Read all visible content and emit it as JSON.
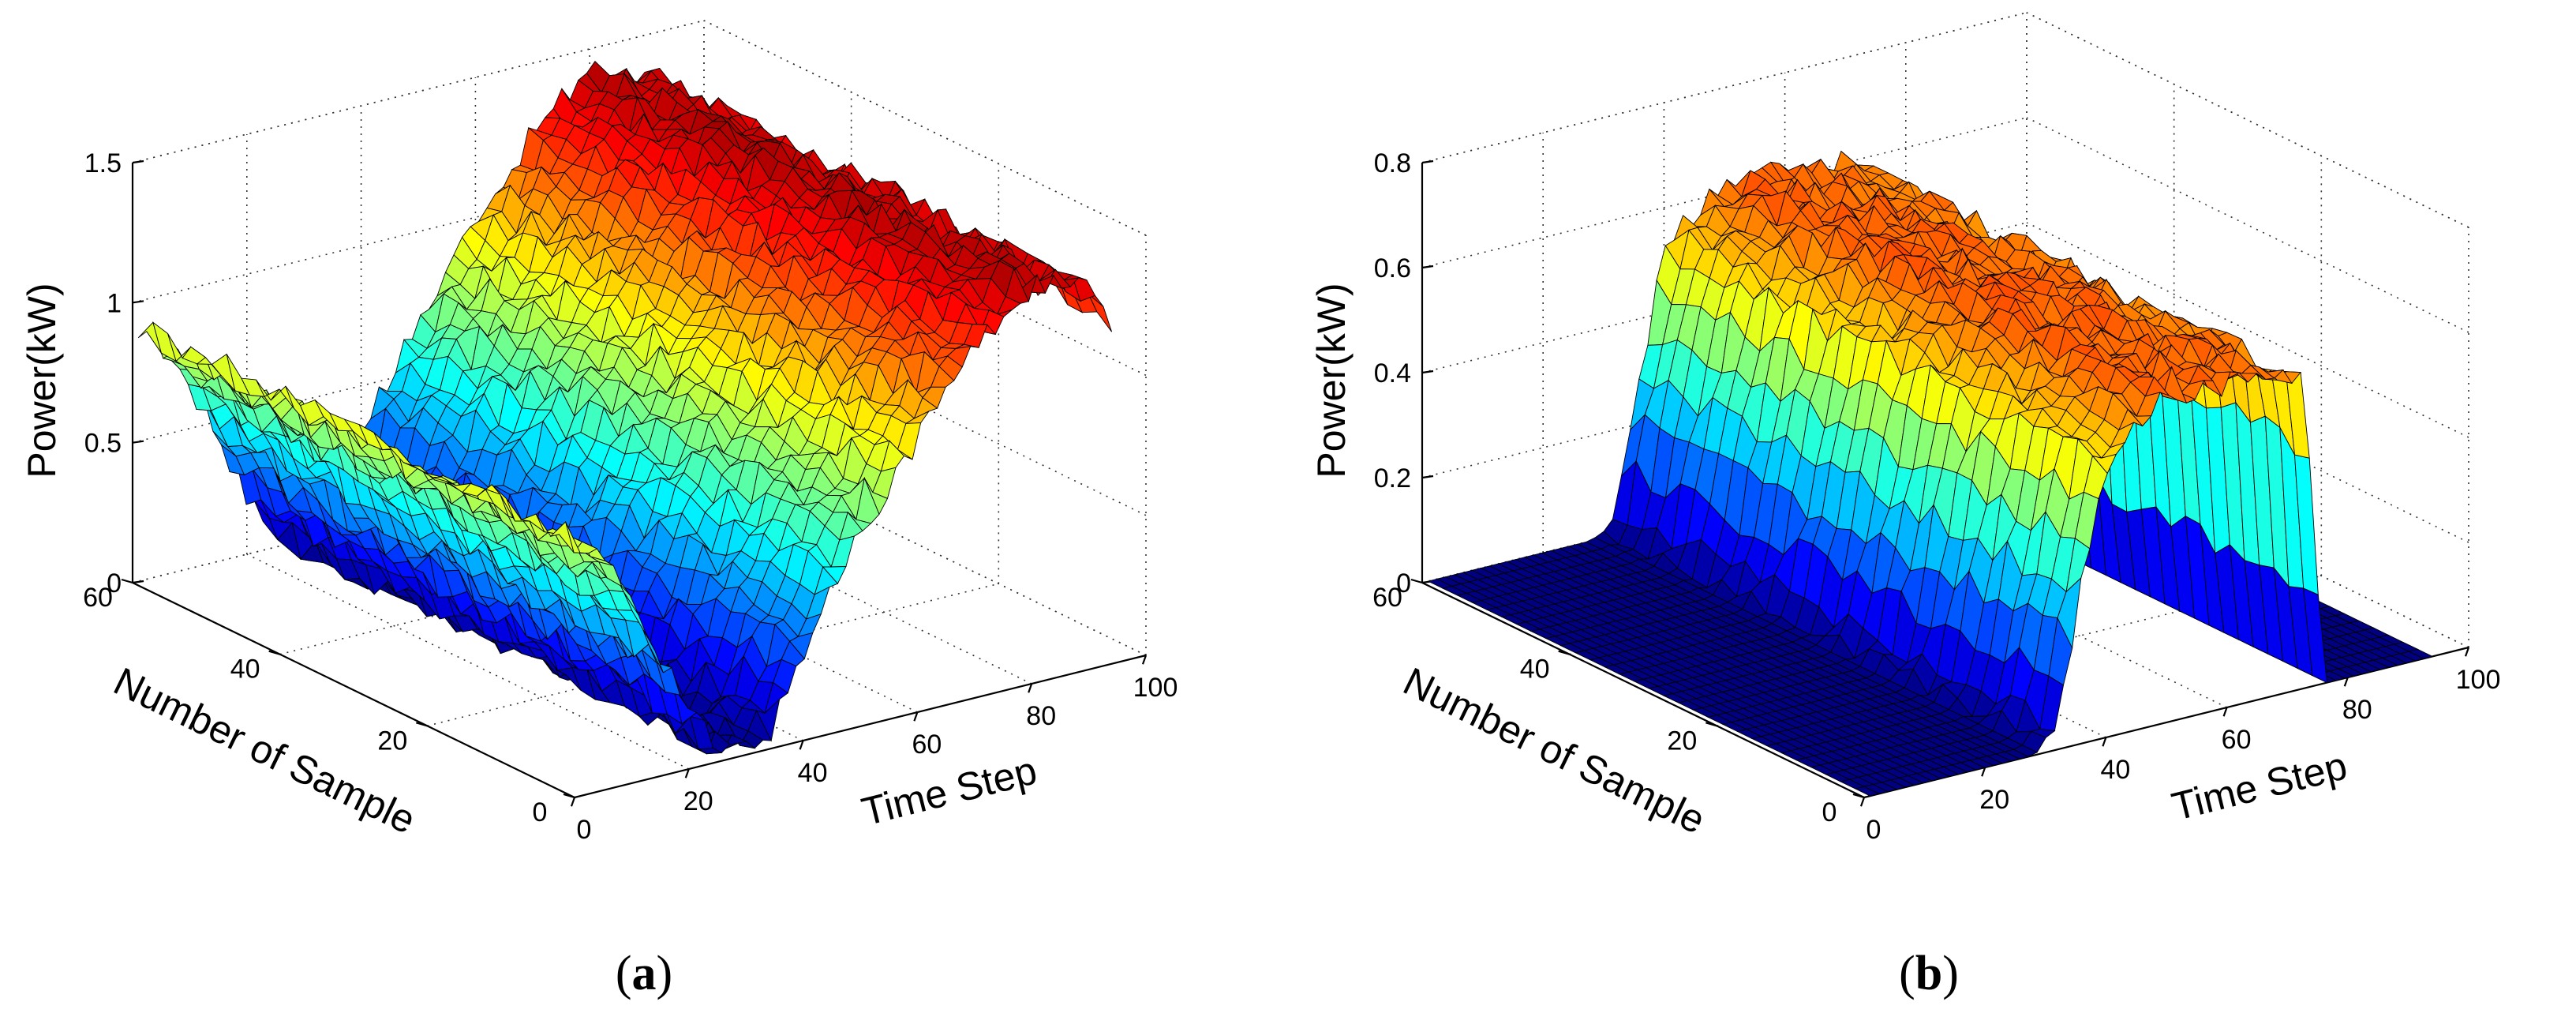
{
  "chart_data": [
    {
      "type": "surface",
      "panel_label": "a",
      "caption_open": "(",
      "caption_close": ")",
      "xlabel": "Time Step",
      "ylabel": "Number of Sample",
      "zlabel": "Power(kW)",
      "xlim": [
        0,
        100
      ],
      "ylim": [
        0,
        60
      ],
      "zlim": [
        0,
        1.5
      ],
      "xticks": [
        "0",
        "20",
        "40",
        "60",
        "80",
        "100"
      ],
      "yticks": [
        "0",
        "20",
        "40",
        "60"
      ],
      "zticks": [
        "0",
        "0.5",
        "1",
        "1.5"
      ],
      "grid": true,
      "colormap": "jet",
      "surface_profile": {
        "description": "power vs time step, roughly identical across samples with noise",
        "time_step": [
          1,
          10,
          20,
          25,
          30,
          35,
          40,
          50,
          60,
          70,
          80,
          90,
          95
        ],
        "power_kw": [
          0.92,
          0.66,
          0.22,
          0.03,
          0.02,
          0.08,
          0.32,
          0.7,
          0.98,
          1.25,
          1.42,
          1.36,
          1.18
        ]
      }
    },
    {
      "type": "surface",
      "panel_label": "b",
      "caption_open": "(",
      "caption_close": ")",
      "xlabel": "Time Step",
      "ylabel": "Number of Sample",
      "zlabel": "Power(kW)",
      "xlim": [
        0,
        100
      ],
      "ylim": [
        0,
        60
      ],
      "zlim": [
        0,
        0.8
      ],
      "xticks": [
        "0",
        "20",
        "40",
        "60",
        "80",
        "100"
      ],
      "yticks": [
        "0",
        "20",
        "40",
        "60"
      ],
      "zticks": [
        "0",
        "0.2",
        "0.4",
        "0.6",
        "0.8"
      ],
      "grid": true,
      "colormap": "jet",
      "surface_profile": {
        "description": "zero baseline with a charging plateau between time steps ~30 and ~75",
        "time_step": [
          1,
          28,
          31,
          40,
          50,
          60,
          70,
          73,
          76,
          95
        ],
        "power_kw": [
          0.0,
          0.0,
          0.02,
          0.52,
          0.63,
          0.62,
          0.6,
          0.58,
          0.0,
          0.0
        ]
      }
    }
  ]
}
